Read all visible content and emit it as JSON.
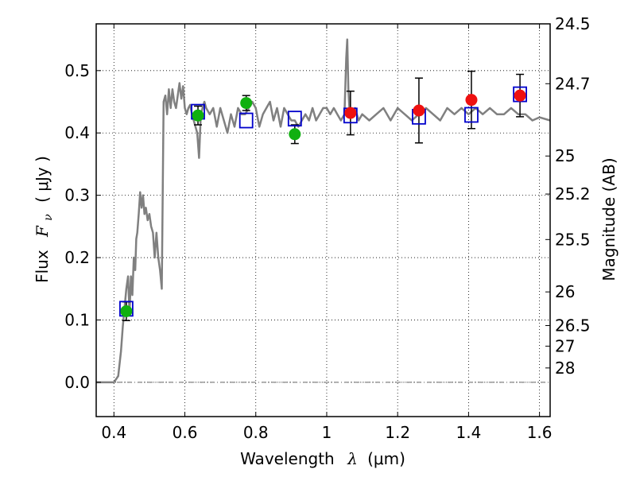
{
  "chart_data": {
    "type": "line",
    "title": "",
    "xlabel": "Wavelength  λ (μm)",
    "xlabel_parts": {
      "main": "Wavelength",
      "symbol": "λ",
      "unit": "(μm)"
    },
    "ylabel": "Flux  Fν  ( μJy )",
    "ylabel_parts": {
      "main": "Flux",
      "symbol": "F",
      "subscript": "ν",
      "unit": "( μJy )"
    },
    "y2label": "Magnitude (AB)",
    "xlim": [
      0.35,
      1.63
    ],
    "ylim": [
      -0.055,
      0.575
    ],
    "grid": true,
    "xticks": [
      0.4,
      0.6,
      0.8,
      1.0,
      1.2,
      1.4,
      1.6
    ],
    "xtick_labels": [
      "0.4",
      "0.6",
      "0.8",
      "1",
      "1.2",
      "1.4",
      "1.6"
    ],
    "yticks": [
      0.0,
      0.1,
      0.2,
      0.3,
      0.4,
      0.5
    ],
    "ytick_labels": [
      "0.0",
      "0.1",
      "0.2",
      "0.3",
      "0.4",
      "0.5"
    ],
    "y2ticks": [
      {
        "label": "24.5",
        "flux": 0.575
      },
      {
        "label": "24.7",
        "flux": 0.479
      },
      {
        "label": "25",
        "flux": 0.363
      },
      {
        "label": "25.2",
        "flux": 0.302
      },
      {
        "label": "25.5",
        "flux": 0.229
      },
      {
        "label": "26",
        "flux": 0.145
      },
      {
        "label": "26.5",
        "flux": 0.091
      },
      {
        "label": "27",
        "flux": 0.058
      },
      {
        "label": "28",
        "flux": 0.023
      }
    ],
    "colors": {
      "sed": "#808080",
      "green": "#10b010",
      "red": "#ee1010",
      "model": "#0000cc",
      "errorbar": "#000000",
      "zero_line": "#666666"
    },
    "series": [
      {
        "name": "SED template",
        "style": "line",
        "x": [
          0.35,
          0.4,
          0.412,
          0.42,
          0.425,
          0.43,
          0.435,
          0.44,
          0.444,
          0.448,
          0.452,
          0.456,
          0.46,
          0.463,
          0.466,
          0.47,
          0.474,
          0.478,
          0.482,
          0.486,
          0.49,
          0.495,
          0.5,
          0.505,
          0.51,
          0.515,
          0.52,
          0.525,
          0.53,
          0.535,
          0.54,
          0.545,
          0.55,
          0.555,
          0.56,
          0.565,
          0.57,
          0.575,
          0.58,
          0.585,
          0.59,
          0.595,
          0.6,
          0.605,
          0.61,
          0.615,
          0.62,
          0.625,
          0.63,
          0.635,
          0.64,
          0.645,
          0.65,
          0.655,
          0.66,
          0.67,
          0.68,
          0.69,
          0.7,
          0.71,
          0.72,
          0.73,
          0.74,
          0.75,
          0.76,
          0.77,
          0.78,
          0.79,
          0.8,
          0.81,
          0.82,
          0.83,
          0.84,
          0.85,
          0.86,
          0.87,
          0.88,
          0.89,
          0.9,
          0.91,
          0.92,
          0.93,
          0.94,
          0.95,
          0.96,
          0.97,
          0.98,
          0.99,
          1.0,
          1.01,
          1.02,
          1.03,
          1.04,
          1.05,
          1.055,
          1.058,
          1.061,
          1.064,
          1.07,
          1.08,
          1.09,
          1.1,
          1.12,
          1.14,
          1.16,
          1.18,
          1.2,
          1.22,
          1.24,
          1.26,
          1.28,
          1.3,
          1.32,
          1.34,
          1.36,
          1.38,
          1.4,
          1.42,
          1.44,
          1.46,
          1.48,
          1.5,
          1.52,
          1.54,
          1.56,
          1.58,
          1.6,
          1.63
        ],
        "y": [
          0.0,
          0.0,
          0.01,
          0.05,
          0.09,
          0.12,
          0.15,
          0.17,
          0.11,
          0.17,
          0.14,
          0.2,
          0.18,
          0.23,
          0.24,
          0.27,
          0.305,
          0.28,
          0.3,
          0.27,
          0.28,
          0.26,
          0.27,
          0.25,
          0.24,
          0.2,
          0.24,
          0.2,
          0.18,
          0.15,
          0.45,
          0.46,
          0.43,
          0.47,
          0.44,
          0.47,
          0.45,
          0.44,
          0.46,
          0.48,
          0.455,
          0.475,
          0.44,
          0.43,
          0.44,
          0.445,
          0.43,
          0.42,
          0.41,
          0.4,
          0.36,
          0.43,
          0.44,
          0.45,
          0.44,
          0.43,
          0.44,
          0.41,
          0.44,
          0.42,
          0.4,
          0.43,
          0.41,
          0.44,
          0.43,
          0.43,
          0.44,
          0.45,
          0.44,
          0.41,
          0.43,
          0.44,
          0.45,
          0.42,
          0.44,
          0.41,
          0.44,
          0.43,
          0.42,
          0.42,
          0.41,
          0.42,
          0.43,
          0.42,
          0.44,
          0.42,
          0.43,
          0.44,
          0.44,
          0.43,
          0.44,
          0.43,
          0.42,
          0.43,
          0.52,
          0.55,
          0.47,
          0.44,
          0.43,
          0.44,
          0.42,
          0.43,
          0.42,
          0.43,
          0.44,
          0.42,
          0.44,
          0.43,
          0.42,
          0.43,
          0.44,
          0.43,
          0.42,
          0.44,
          0.43,
          0.44,
          0.43,
          0.44,
          0.43,
          0.44,
          0.43,
          0.43,
          0.44,
          0.43,
          0.43,
          0.42,
          0.425,
          0.42
        ]
      },
      {
        "name": "Observed (green)",
        "style": "marker-circle",
        "points": [
          {
            "x": 0.435,
            "y": 0.114,
            "err": 0.015
          },
          {
            "x": 0.637,
            "y": 0.428,
            "err": 0.015
          },
          {
            "x": 0.773,
            "y": 0.448,
            "err": 0.012
          },
          {
            "x": 0.91,
            "y": 0.398,
            "err": 0.015
          }
        ]
      },
      {
        "name": "Observed (red)",
        "style": "marker-circle",
        "points": [
          {
            "x": 1.067,
            "y": 0.432,
            "err": 0.035
          },
          {
            "x": 1.26,
            "y": 0.436,
            "err": 0.052
          },
          {
            "x": 1.408,
            "y": 0.453,
            "err": 0.046
          },
          {
            "x": 1.545,
            "y": 0.46,
            "err": 0.034
          }
        ]
      },
      {
        "name": "Model photometry",
        "style": "marker-square",
        "points": [
          {
            "x": 0.435,
            "y": 0.118
          },
          {
            "x": 0.637,
            "y": 0.434
          },
          {
            "x": 0.773,
            "y": 0.42
          },
          {
            "x": 0.91,
            "y": 0.423
          },
          {
            "x": 1.067,
            "y": 0.428
          },
          {
            "x": 1.26,
            "y": 0.426
          },
          {
            "x": 1.408,
            "y": 0.429
          },
          {
            "x": 1.545,
            "y": 0.462
          }
        ]
      }
    ]
  }
}
